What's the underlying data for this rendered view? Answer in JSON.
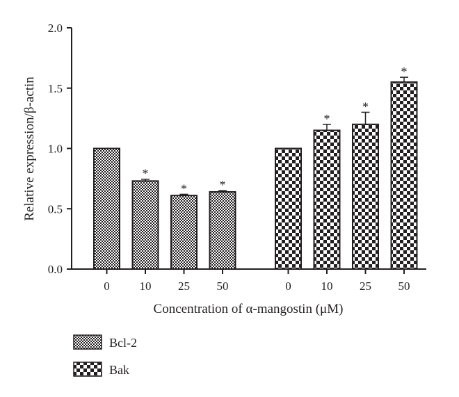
{
  "chart_data": {
    "type": "bar",
    "title": "",
    "ylabel": "Relative expression/β-actin",
    "xlabel": "Concentration of α-mangostin (μM)",
    "ylim": [
      0,
      2.0
    ],
    "yticks": [
      "0.0",
      "0.5",
      "1.0",
      "1.5",
      "2.0"
    ],
    "grid": false,
    "legend_position": "bottom-left",
    "significance_marker": "*",
    "groups": [
      {
        "name": "Bcl-2",
        "pattern": "fine-checker",
        "categories": [
          "0",
          "10",
          "25",
          "50"
        ],
        "values": [
          1.0,
          0.73,
          0.61,
          0.64
        ],
        "errors": [
          0.0,
          0.015,
          0.01,
          0.01
        ],
        "significant": [
          false,
          true,
          true,
          true
        ]
      },
      {
        "name": "Bak",
        "pattern": "coarse-checker",
        "categories": [
          "0",
          "10",
          "25",
          "50"
        ],
        "values": [
          1.0,
          1.15,
          1.2,
          1.55
        ],
        "errors": [
          0.0,
          0.05,
          0.1,
          0.04
        ],
        "significant": [
          false,
          true,
          true,
          true
        ]
      }
    ],
    "legend": [
      "Bcl-2",
      "Bak"
    ]
  }
}
